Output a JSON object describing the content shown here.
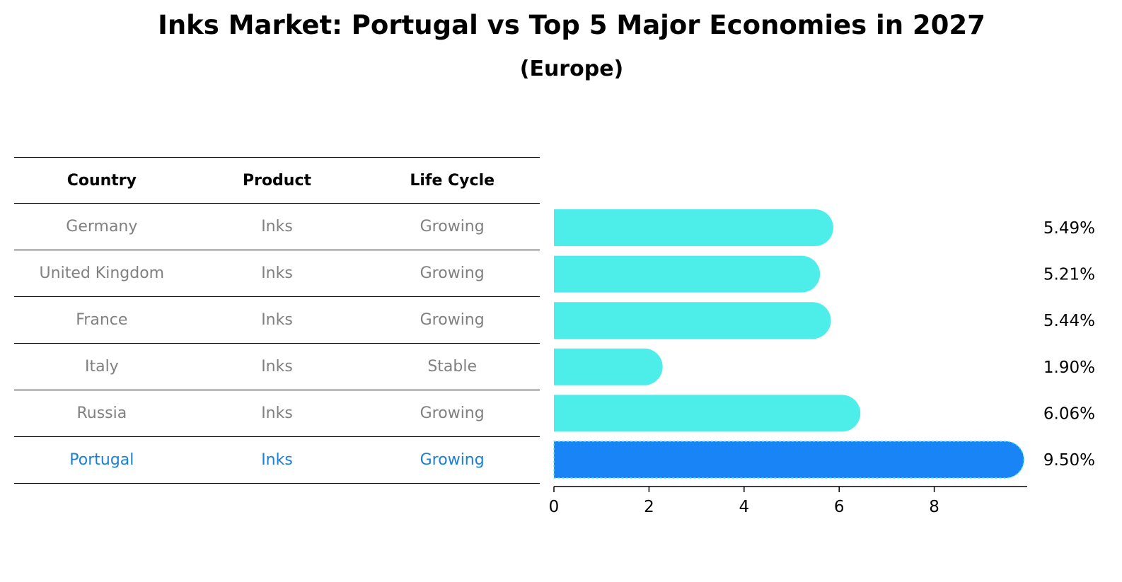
{
  "title": "Inks Market: Portugal vs Top 5 Major Economies in 2027",
  "subtitle": "(Europe)",
  "table": {
    "headers": [
      "Country",
      "Product",
      "Life Cycle"
    ],
    "rows": [
      [
        "Germany",
        "Inks",
        "Growing"
      ],
      [
        "United Kingdom",
        "Inks",
        "Growing"
      ],
      [
        "France",
        "Inks",
        "Growing"
      ],
      [
        "Italy",
        "Inks",
        "Stable"
      ],
      [
        "Russia",
        "Inks",
        "Growing"
      ],
      [
        "Portugal",
        "Inks",
        "Growing"
      ]
    ],
    "highlight_row": 5
  },
  "chart_data": {
    "type": "bar",
    "orientation": "horizontal",
    "categories": [
      "Germany",
      "United Kingdom",
      "France",
      "Italy",
      "Russia",
      "Portugal"
    ],
    "values": [
      5.49,
      5.21,
      5.44,
      1.9,
      6.06,
      9.5
    ],
    "value_labels": [
      "5.49%",
      "5.21%",
      "5.44%",
      "1.90%",
      "6.06%",
      "9.50%"
    ],
    "xlim": [
      0,
      10
    ],
    "xticks": [
      0,
      2,
      4,
      6,
      8
    ],
    "bar_colors": [
      "#4deeea",
      "#4deeea",
      "#4deeea",
      "#4deeea",
      "#4deeea",
      "#1984f5"
    ],
    "grid": false
  }
}
